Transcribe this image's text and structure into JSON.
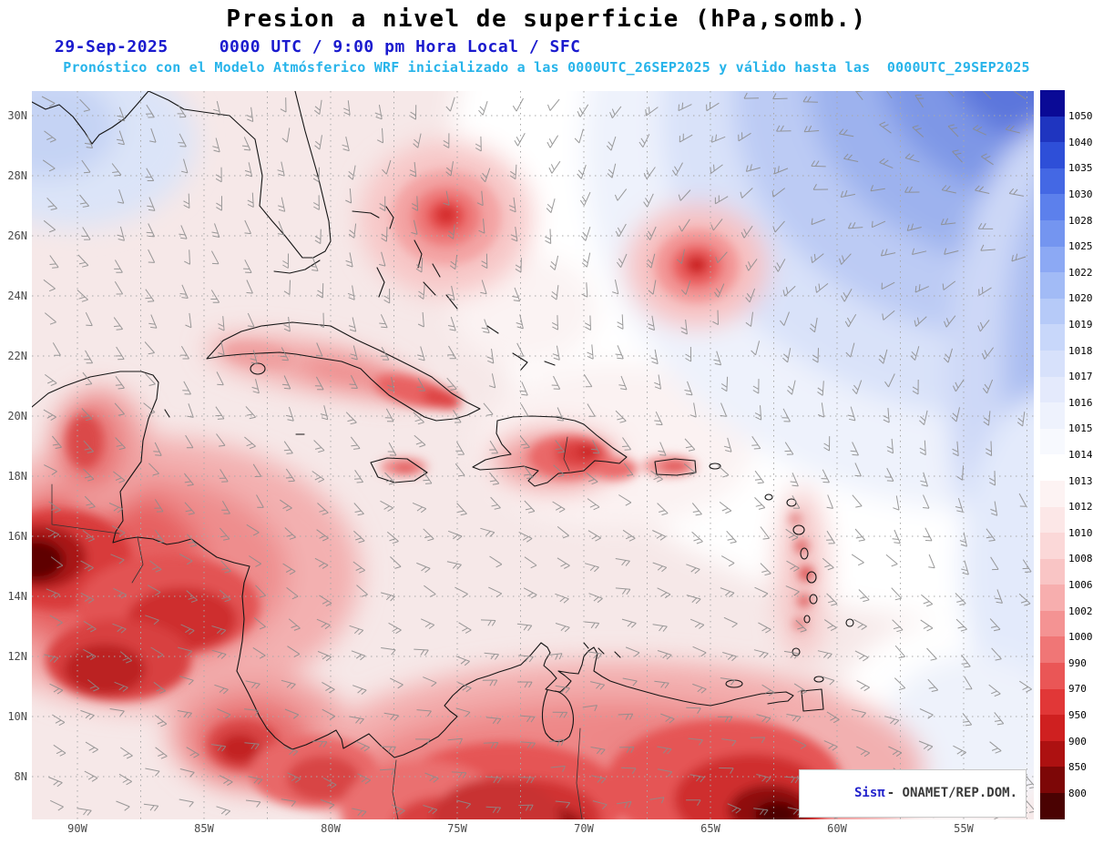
{
  "header": {
    "title": "Presion a nivel de superficie (hPa,somb.)",
    "date": "29-Sep-2025",
    "time_info": "0000 UTC / 9:00 pm Hora Local / SFC",
    "model_info": "Pronóstico con el Modelo Atmósferico WRF inicializado a las 0000UTC_26SEP2025 y válido hasta las  0000UTC_29SEP2025"
  },
  "map": {
    "lat_labels": [
      "30N",
      "28N",
      "26N",
      "24N",
      "22N",
      "20N",
      "18N",
      "16N",
      "14N",
      "12N",
      "10N",
      "8N"
    ],
    "lon_labels": [
      "90W",
      "85W",
      "80W",
      "75W",
      "70W",
      "65W",
      "60W",
      "55W"
    ]
  },
  "colorbar": {
    "unit": "hPa",
    "tick_labels": [
      "1050",
      "1040",
      "1035",
      "1030",
      "1028",
      "1025",
      "1022",
      "1020",
      "1019",
      "1018",
      "1017",
      "1016",
      "1015",
      "1014",
      "1013",
      "1012",
      "1010",
      "1008",
      "1006",
      "1002",
      "1000",
      "990",
      "970",
      "950",
      "900",
      "850",
      "800"
    ],
    "segment_colors_top_to_bottom": [
      "#0a0a96",
      "#1f35c0",
      "#2e4fd8",
      "#4468e4",
      "#5c80ec",
      "#7495f0",
      "#8ca9f4",
      "#a2bbf6",
      "#b6caf8",
      "#c8d7fa",
      "#d7e1fb",
      "#e4eafc",
      "#eef2fd",
      "#f7f9fe",
      "#ffffff",
      "#fdf3f3",
      "#fce7e7",
      "#fbd8d8",
      "#f9c5c5",
      "#f7aeae",
      "#f49393",
      "#f07676",
      "#ea5656",
      "#e13737",
      "#cf2020",
      "#ad1111",
      "#7d0707",
      "#4a0202"
    ]
  },
  "credit": {
    "system": "Sisπ",
    "org": "- ONAMET/REP.DOM."
  },
  "chart_data": {
    "type": "heatmap",
    "title": "Presion a nivel de superficie (hPa,somb.)",
    "valid_time": "29-Sep-2025 0000 UTC / 9:00 pm Hora Local / SFC",
    "model_run": "WRF inicializado 0000UTC_26SEP2025 válido hasta 0000UTC_29SEP2025",
    "x_axis_labels": [
      "90W",
      "85W",
      "80W",
      "75W",
      "70W",
      "65W",
      "60W",
      "55W"
    ],
    "y_axis_labels": [
      "30N",
      "28N",
      "26N",
      "24N",
      "22N",
      "20N",
      "18N",
      "16N",
      "14N",
      "12N",
      "10N",
      "8N"
    ],
    "colorbar_levels_hpa": [
      1050,
      1040,
      1035,
      1030,
      1028,
      1025,
      1022,
      1020,
      1019,
      1018,
      1017,
      1016,
      1015,
      1014,
      1013,
      1012,
      1010,
      1008,
      1006,
      1002,
      1000,
      990,
      970,
      950,
      900,
      850,
      800
    ],
    "legend_position": "right",
    "grid": "dotted"
  }
}
